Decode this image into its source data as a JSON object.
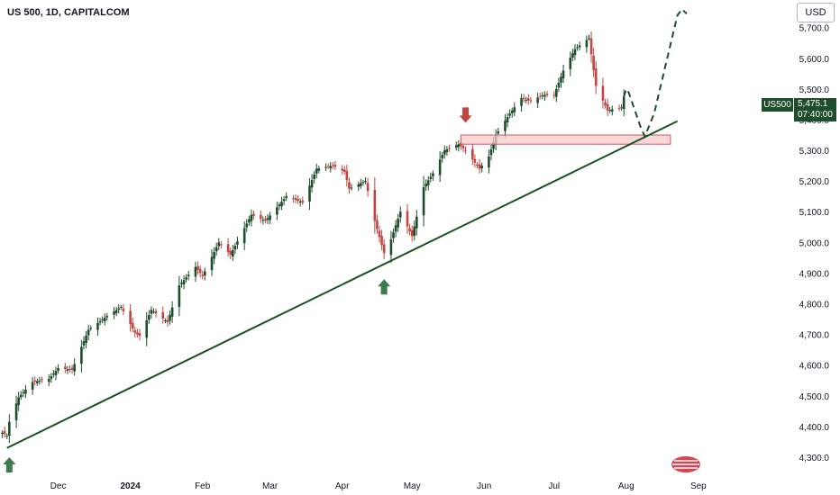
{
  "header": {
    "title": "US 500, 1D, CAPITALCOM"
  },
  "currency_button": {
    "label": "USD"
  },
  "price_tag": {
    "symbol": "US500",
    "price": "5,475.1",
    "countdown": "07:40:00"
  },
  "colors": {
    "up": "#1e4d2b",
    "down": "#c2453f",
    "trend": "#14521f",
    "zone_fill": "#f7c9cb",
    "zone_border": "#d15a63",
    "arrow_up": "#3f7a4f",
    "arrow_down": "#c2453f"
  },
  "chart_data": {
    "type": "candlestick",
    "title": "US 500, 1D, CAPITALCOM",
    "currency": "USD",
    "x_tick_labels": [
      "Dec",
      "2024",
      "Feb",
      "Mar",
      "Apr",
      "May",
      "Jun",
      "Jul",
      "Aug",
      "Sep"
    ],
    "y_tick_labels": [
      "5,700.0",
      "5,600.0",
      "5,500.0",
      "5,400.0",
      "5,300.0",
      "5,200.0",
      "5,100.0",
      "5,000.0",
      "4,900.0",
      "4,800.0",
      "4,700.0",
      "4,600.0",
      "4,500.0",
      "4,400.0",
      "4,300.0"
    ],
    "y_ticks": [
      5700,
      5600,
      5500,
      5400,
      5300,
      5200,
      5100,
      5000,
      4900,
      4800,
      4700,
      4600,
      4500,
      4400,
      4300
    ],
    "ylim": [
      4250,
      5790
    ],
    "x_range": [
      "2023-11-06",
      "2024-09-27"
    ],
    "last_price": 5475.1,
    "closes": [
      {
        "date": "2023-11-07",
        "close": 4380
      },
      {
        "date": "2023-11-09",
        "close": 4370
      },
      {
        "date": "2023-11-10",
        "close": 4415
      },
      {
        "date": "2023-11-14",
        "close": 4495
      },
      {
        "date": "2023-11-20",
        "close": 4545
      },
      {
        "date": "2023-11-27",
        "close": 4555
      },
      {
        "date": "2023-12-01",
        "close": 4590
      },
      {
        "date": "2023-12-07",
        "close": 4585
      },
      {
        "date": "2023-12-14",
        "close": 4715
      },
      {
        "date": "2023-12-22",
        "close": 4760
      },
      {
        "date": "2023-12-28",
        "close": 4790
      },
      {
        "date": "2024-01-03",
        "close": 4705
      },
      {
        "date": "2024-01-05",
        "close": 4695
      },
      {
        "date": "2024-01-10",
        "close": 4780
      },
      {
        "date": "2024-01-17",
        "close": 4740
      },
      {
        "date": "2024-01-22",
        "close": 4860
      },
      {
        "date": "2024-01-29",
        "close": 4920
      },
      {
        "date": "2024-02-01",
        "close": 4890
      },
      {
        "date": "2024-02-08",
        "close": 5000
      },
      {
        "date": "2024-02-13",
        "close": 4960
      },
      {
        "date": "2024-02-22",
        "close": 5090
      },
      {
        "date": "2024-02-28",
        "close": 5070
      },
      {
        "date": "2024-03-08",
        "close": 5150
      },
      {
        "date": "2024-03-15",
        "close": 5130
      },
      {
        "date": "2024-03-21",
        "close": 5240
      },
      {
        "date": "2024-03-28",
        "close": 5250
      },
      {
        "date": "2024-04-02",
        "close": 5230
      },
      {
        "date": "2024-04-04",
        "close": 5175
      },
      {
        "date": "2024-04-11",
        "close": 5200
      },
      {
        "date": "2024-04-15",
        "close": 5070
      },
      {
        "date": "2024-04-19",
        "close": 4965
      },
      {
        "date": "2024-04-22",
        "close": 5010
      },
      {
        "date": "2024-04-26",
        "close": 5100
      },
      {
        "date": "2024-05-01",
        "close": 5020
      },
      {
        "date": "2024-05-06",
        "close": 5180
      },
      {
        "date": "2024-05-10",
        "close": 5225
      },
      {
        "date": "2024-05-15",
        "close": 5300
      },
      {
        "date": "2024-05-21",
        "close": 5320
      },
      {
        "date": "2024-05-24",
        "close": 5300
      },
      {
        "date": "2024-05-30",
        "close": 5240
      },
      {
        "date": "2024-06-03",
        "close": 5280
      },
      {
        "date": "2024-06-06",
        "close": 5350
      },
      {
        "date": "2024-06-12",
        "close": 5420
      },
      {
        "date": "2024-06-17",
        "close": 5470
      },
      {
        "date": "2024-06-21",
        "close": 5460
      },
      {
        "date": "2024-06-26",
        "close": 5480
      },
      {
        "date": "2024-07-01",
        "close": 5480
      },
      {
        "date": "2024-07-05",
        "close": 5560
      },
      {
        "date": "2024-07-10",
        "close": 5630
      },
      {
        "date": "2024-07-16",
        "close": 5665
      },
      {
        "date": "2024-07-19",
        "close": 5510
      },
      {
        "date": "2024-07-24",
        "close": 5430
      },
      {
        "date": "2024-07-30",
        "close": 5440
      },
      {
        "date": "2024-07-31",
        "close": 5475.1
      }
    ],
    "annotations": {
      "trendline": {
        "start": {
          "date": "2023-11-09",
          "price": 4330
        },
        "end": {
          "date": "2024-08-23",
          "price": 5395
        }
      },
      "resistance_zone": {
        "date_start": "2024-05-22",
        "date_end": "2024-08-20",
        "price_low": 5320,
        "price_high": 5350
      },
      "projection": [
        {
          "date": "2024-07-31",
          "price": 5475.1
        },
        {
          "date": "2024-08-01",
          "price": 5500
        },
        {
          "date": "2024-08-02",
          "price": 5490
        },
        {
          "date": "2024-08-07",
          "price": 5380
        },
        {
          "date": "2024-08-09",
          "price": 5345
        },
        {
          "date": "2024-08-13",
          "price": 5420
        },
        {
          "date": "2024-08-23",
          "price": 5740
        },
        {
          "date": "2024-08-25",
          "price": 5760
        },
        {
          "date": "2024-08-27",
          "price": 5745
        }
      ],
      "up_arrows": [
        {
          "date": "2023-11-10",
          "price": 4300
        },
        {
          "date": "2024-04-19",
          "price": 4880
        }
      ],
      "down_arrows": [
        {
          "date": "2024-05-24",
          "price": 5390
        }
      ]
    }
  }
}
